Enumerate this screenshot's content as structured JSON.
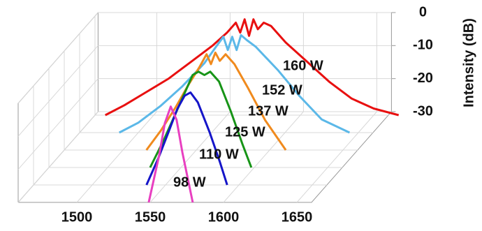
{
  "chart_data": {
    "type": "line",
    "ylabel": "Intensity (dB)",
    "xlim": [
      1460,
      1660
    ],
    "xticks": [
      1500,
      1550,
      1600,
      1650
    ],
    "ylim": [
      -30,
      0
    ],
    "yticks": [
      0,
      -10,
      -20,
      -30
    ],
    "grid": true,
    "series": [
      {
        "name": "98 W",
        "color": "#e83fc0",
        "x": [
          1549,
          1556,
          1560,
          1564,
          1568,
          1572,
          1579
        ],
        "values": [
          -30,
          -16,
          -6,
          -1,
          -5,
          -15,
          -30
        ]
      },
      {
        "name": "110 W",
        "color": "#1515c8",
        "x": [
          1537,
          1545,
          1552,
          1558,
          1563,
          1567,
          1572,
          1580,
          1587,
          1592
        ],
        "values": [
          -30,
          -22,
          -14,
          -7,
          -3,
          -2,
          -5,
          -14,
          -23,
          -30
        ]
      },
      {
        "name": "125 W",
        "color": "#179417",
        "x": [
          1529,
          1538,
          1546,
          1553,
          1558,
          1562,
          1566,
          1570,
          1576,
          1584,
          1592,
          1598
        ],
        "values": [
          -30,
          -22,
          -14,
          -7,
          -2,
          -1,
          -2,
          -1,
          -4,
          -13,
          -23,
          -30
        ]
      },
      {
        "name": "137 W",
        "color": "#f08a1d",
        "x": [
          1516,
          1526,
          1536,
          1545,
          1552,
          1557,
          1560,
          1563,
          1566,
          1570,
          1576,
          1585,
          1597,
          1611
        ],
        "values": [
          -30,
          -24,
          -17,
          -10,
          -5,
          -1,
          -4,
          -0.5,
          -3,
          -1,
          -4,
          -11,
          -21,
          -30
        ]
      },
      {
        "name": "152 W",
        "color": "#5bb8e8",
        "x": [
          1487,
          1500,
          1515,
          1530,
          1545,
          1553,
          1558,
          1561,
          1564,
          1567,
          1570,
          1574,
          1580,
          1595,
          1610,
          1625,
          1644
        ],
        "values": [
          -30,
          -27,
          -22,
          -16,
          -9,
          -4,
          -1,
          -5,
          -1,
          -5,
          -0.5,
          -2,
          -4,
          -11,
          -19,
          -26,
          -30
        ]
      },
      {
        "name": "160 W",
        "color": "#e81010",
        "x": [
          1467,
          1480,
          1495,
          1510,
          1525,
          1540,
          1550,
          1556,
          1559,
          1562,
          1565,
          1568,
          1571,
          1575,
          1580,
          1590,
          1605,
          1620,
          1635,
          1650,
          1667
        ],
        "values": [
          -30,
          -27,
          -23,
          -19,
          -14,
          -9,
          -5,
          -2,
          -5,
          -1,
          -6,
          -1,
          -4,
          -2,
          -3,
          -8,
          -14,
          -20,
          -25,
          -28,
          -30
        ]
      }
    ]
  }
}
